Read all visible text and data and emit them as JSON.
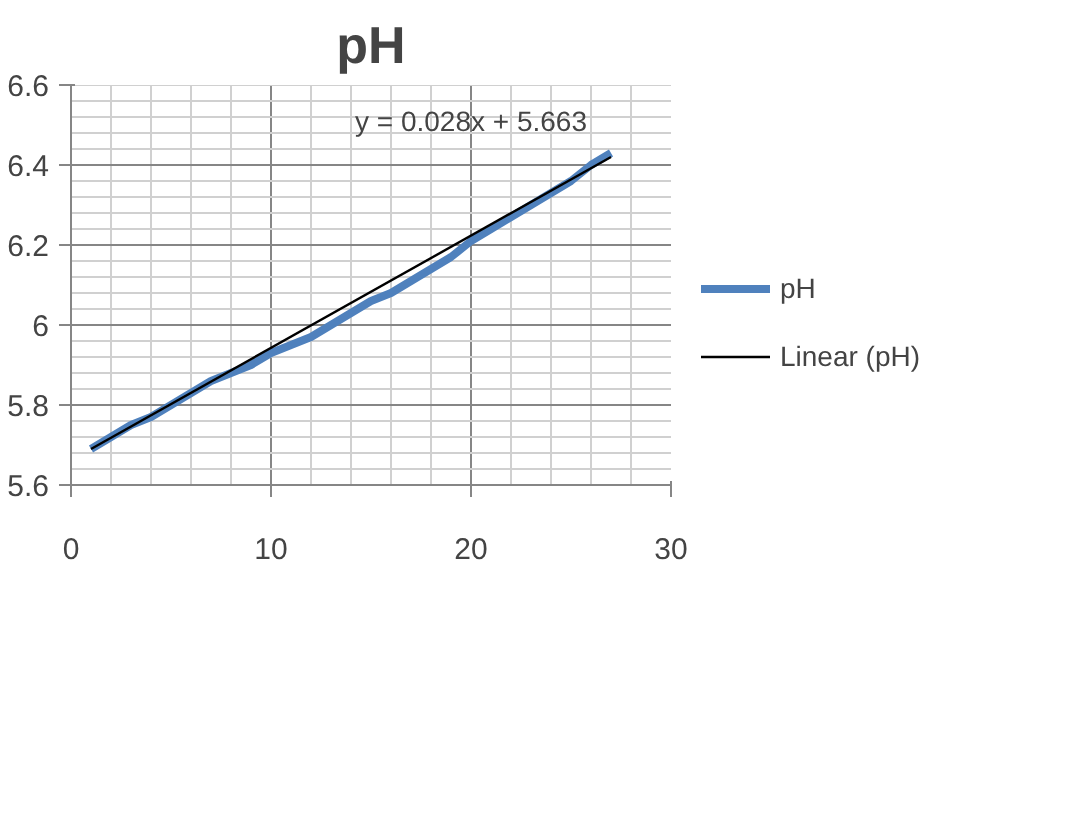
{
  "chart_data": {
    "type": "line",
    "title": "pH",
    "x": [
      1,
      2,
      3,
      4,
      5,
      6,
      7,
      8,
      9,
      10,
      11,
      12,
      13,
      14,
      15,
      16,
      17,
      18,
      19,
      20,
      21,
      22,
      23,
      24,
      25,
      26,
      27
    ],
    "series": [
      {
        "name": "pH",
        "color": "#4f81bd",
        "values": [
          5.69,
          5.72,
          5.75,
          5.77,
          5.8,
          5.83,
          5.86,
          5.88,
          5.9,
          5.93,
          5.95,
          5.97,
          6.0,
          6.03,
          6.06,
          6.08,
          6.11,
          6.14,
          6.17,
          6.21,
          6.24,
          6.27,
          6.3,
          6.33,
          6.36,
          6.4,
          6.43
        ]
      },
      {
        "name": "Linear (pH)",
        "color": "#000000",
        "x": [
          1,
          27
        ],
        "values": [
          5.69,
          6.42
        ]
      }
    ],
    "annotations": [
      "y = 0.028x + 5.663"
    ],
    "xlim": [
      0,
      30
    ],
    "xticks": [
      0,
      10,
      20,
      30
    ],
    "ylim": [
      5.6,
      6.6
    ],
    "yticks": [
      5.6,
      5.8,
      6,
      6.2,
      6.4,
      6.6
    ],
    "grid": true,
    "legend": "right",
    "marker": "none"
  }
}
